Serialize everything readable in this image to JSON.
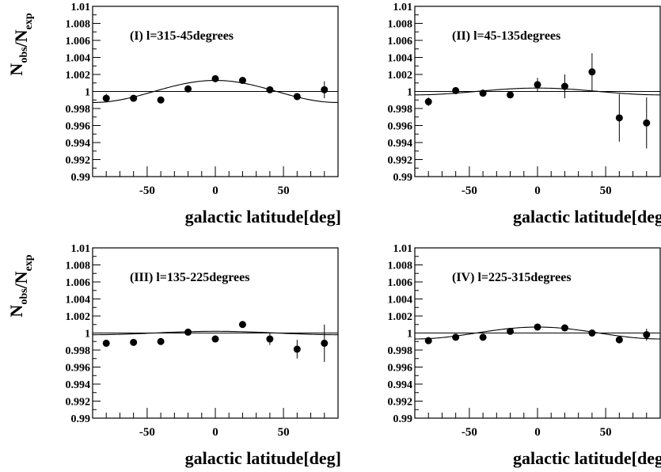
{
  "chart_data": [
    {
      "type": "scatter",
      "panel_label": "(I)  l=315-45degrees",
      "xlabel": "galactic latitude[deg]",
      "ylabel": "N_obs/N_exp",
      "xlim": [
        -90,
        90
      ],
      "ylim": [
        0.99,
        1.01
      ],
      "x_ticks": [
        "-50",
        "0",
        "50"
      ],
      "y_ticks": [
        "0.99",
        "0.992",
        "0.994",
        "0.996",
        "0.998",
        "1",
        "1.002",
        "1.004",
        "1.006",
        "1.008",
        "1.01"
      ],
      "x": [
        -80,
        -60,
        -40,
        -20,
        0,
        20,
        40,
        60,
        80
      ],
      "y": [
        0.9992,
        0.9992,
        0.999,
        1.0003,
        1.0015,
        1.0013,
        1.0002,
        0.9994,
        1.0002
      ],
      "yerr": [
        0.0005,
        0.0002,
        0.0002,
        0.0003,
        0.0002,
        0.0003,
        0.0003,
        0.0002,
        0.001
      ],
      "fit_amplitude": 0.0013,
      "reference_line": 1.0
    },
    {
      "type": "scatter",
      "panel_label": "(II)  l=45-135degrees",
      "xlabel": "galactic latitude[deg",
      "ylabel": "",
      "xlim": [
        -90,
        90
      ],
      "ylim": [
        0.99,
        1.01
      ],
      "x_ticks": [
        "-50",
        "0",
        "50"
      ],
      "y_ticks": [
        "0.99",
        "0.992",
        "0.994",
        "0.996",
        "0.998",
        "1",
        "1.002",
        "1.004",
        "1.006",
        "1.008",
        "1.01"
      ],
      "x": [
        -80,
        -60,
        -40,
        -20,
        0,
        20,
        40,
        60,
        80
      ],
      "y": [
        0.9988,
        1.0001,
        0.9998,
        0.9996,
        1.0008,
        1.0006,
        1.0023,
        0.9969,
        0.9963
      ],
      "yerr": [
        0.0005,
        0.0003,
        0.0003,
        0.0004,
        0.0008,
        0.0014,
        0.0022,
        0.0028,
        0.003
      ],
      "fit_amplitude": 0.0004,
      "reference_line": 1.0
    },
    {
      "type": "scatter",
      "panel_label": "(III)  l=135-225degrees",
      "xlabel": "galactic latitude[deg]",
      "ylabel": "N_obs/N_exp",
      "xlim": [
        -90,
        90
      ],
      "ylim": [
        0.99,
        1.01
      ],
      "x_ticks": [
        "-50",
        "0",
        "50"
      ],
      "y_ticks": [
        "0.99",
        "0.992",
        "0.994",
        "0.996",
        "0.998",
        "1",
        "1.002",
        "1.004",
        "1.006",
        "1.008",
        "1.01"
      ],
      "x": [
        -80,
        -60,
        -40,
        -20,
        0,
        20,
        40,
        60,
        80
      ],
      "y": [
        0.9988,
        0.9989,
        0.999,
        1.0001,
        0.9993,
        1.001,
        0.9993,
        0.9981,
        0.9988
      ],
      "yerr": [
        0.0004,
        0.0002,
        0.0002,
        0.0003,
        0.0002,
        0.0004,
        0.0007,
        0.0011,
        0.0022
      ],
      "fit_amplitude": 0.0002,
      "reference_line": 1.0
    },
    {
      "type": "scatter",
      "panel_label": "(IV)  l=225-315degrees",
      "xlabel": "galactic latitude[deg",
      "ylabel": "",
      "xlim": [
        -90,
        90
      ],
      "ylim": [
        0.99,
        1.01
      ],
      "x_ticks": [
        "-50",
        "0",
        "50"
      ],
      "y_ticks": [
        "0.99",
        "0.992",
        "0.994",
        "0.996",
        "0.998",
        "1",
        "1.002",
        "1.004",
        "1.006",
        "1.008",
        "1.01"
      ],
      "x": [
        -80,
        -60,
        -40,
        -20,
        0,
        20,
        40,
        60,
        80
      ],
      "y": [
        0.9991,
        0.9995,
        0.9995,
        1.0002,
        1.0007,
        1.0006,
        1.0,
        0.9992,
        0.9998
      ],
      "yerr": [
        0.0004,
        0.0002,
        0.0002,
        0.0002,
        0.0002,
        0.0003,
        0.0003,
        0.0002,
        0.0007
      ],
      "fit_amplitude": 0.0007,
      "reference_line": 1.0
    }
  ]
}
